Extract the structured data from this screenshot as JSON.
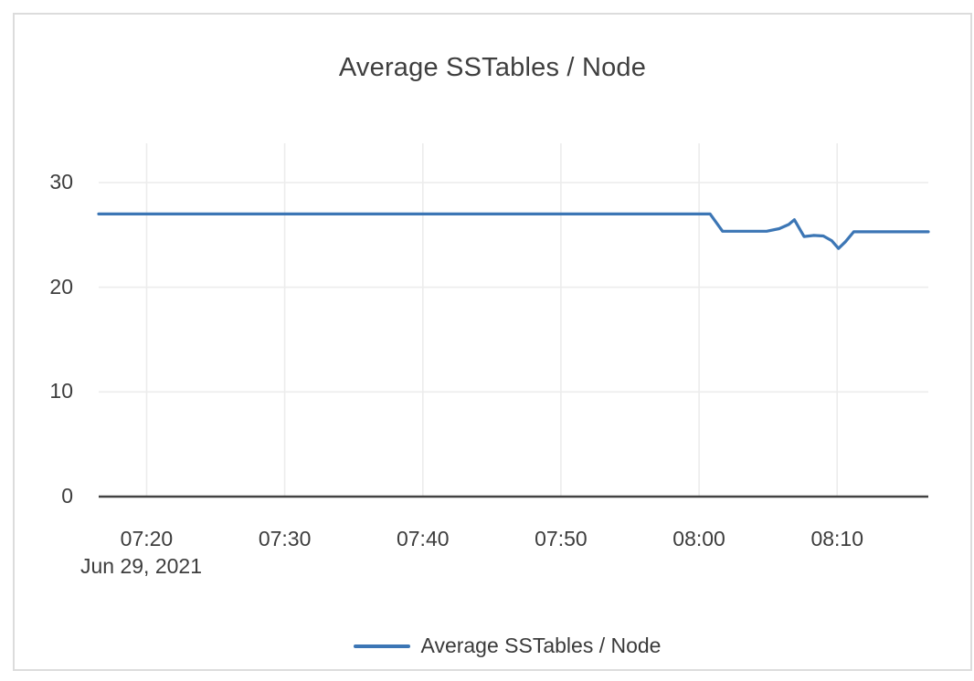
{
  "chart_data": {
    "type": "line",
    "title": "Average SSTables / Node",
    "legend_label": "Average SSTables / Node",
    "x_date_label": "Jun 29, 2021",
    "x_unit": "minutes_after_07:00",
    "xlim": [
      16.53,
      76.6
    ],
    "ylim": [
      0,
      33.75
    ],
    "grid_on": true,
    "legend_position": "bottom-center",
    "grid_color": "#ececec",
    "axis_color": "#424242",
    "x_ticks": [
      {
        "m": 20,
        "label": "07:20"
      },
      {
        "m": 30,
        "label": "07:30"
      },
      {
        "m": 40,
        "label": "07:40"
      },
      {
        "m": 50,
        "label": "07:50"
      },
      {
        "m": 60,
        "label": "08:00"
      },
      {
        "m": 70,
        "label": "08:10"
      }
    ],
    "y_ticks": [
      {
        "v": 0,
        "label": "0"
      },
      {
        "v": 10,
        "label": "10"
      },
      {
        "v": 20,
        "label": "20"
      },
      {
        "v": 30,
        "label": "30"
      }
    ],
    "series": [
      {
        "name": "Average SSTables / Node",
        "color": "#3c76b5",
        "points": [
          [
            16.53,
            27.0
          ],
          [
            60.8,
            27.0
          ],
          [
            61.7,
            25.35
          ],
          [
            64.9,
            25.35
          ],
          [
            65.8,
            25.6
          ],
          [
            66.5,
            26.0
          ],
          [
            66.9,
            26.45
          ],
          [
            67.6,
            24.85
          ],
          [
            68.3,
            24.95
          ],
          [
            69.0,
            24.9
          ],
          [
            69.6,
            24.45
          ],
          [
            70.1,
            23.7
          ],
          [
            70.6,
            24.35
          ],
          [
            71.2,
            25.3
          ],
          [
            76.6,
            25.3
          ]
        ]
      }
    ]
  }
}
